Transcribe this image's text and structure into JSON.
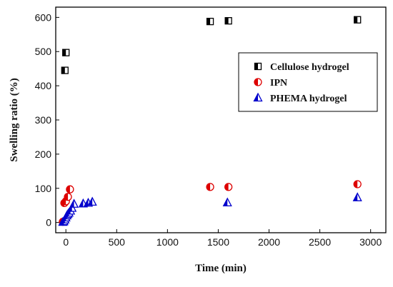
{
  "chart_data": {
    "type": "scatter",
    "xlabel": "Time (min)",
    "ylabel": "Swelling ratio (%)",
    "xlim": [
      -100,
      3150
    ],
    "ylim": [
      -30,
      630
    ],
    "xticks": [
      0,
      500,
      1000,
      1500,
      2000,
      2500,
      3000
    ],
    "yticks": [
      0,
      100,
      200,
      300,
      400,
      500,
      600
    ],
    "grid": false,
    "legend_position": "top-right",
    "series": [
      {
        "name": "Cellulose hydrogel",
        "marker": "half-filled-square",
        "color": "#000000",
        "x": [
          -10,
          0,
          1420,
          1600,
          2870
        ],
        "y": [
          445,
          497,
          588,
          590,
          593
        ]
      },
      {
        "name": "IPN",
        "marker": "half-filled-circle",
        "color": "#dd0000",
        "x": [
          -30,
          -15,
          0,
          20,
          40,
          1420,
          1600,
          2870
        ],
        "y": [
          2,
          57,
          62,
          75,
          97,
          104,
          104,
          112
        ]
      },
      {
        "name": "PHEMA hydrogel",
        "marker": "half-filled-triangle",
        "color": "#0000cc",
        "x": [
          -30,
          -20,
          -10,
          0,
          10,
          20,
          30,
          45,
          60,
          80,
          170,
          220,
          260,
          1590,
          2870
        ],
        "y": [
          1,
          3,
          8,
          14,
          20,
          24,
          28,
          34,
          42,
          54,
          55,
          57,
          60,
          58,
          73
        ]
      }
    ]
  }
}
